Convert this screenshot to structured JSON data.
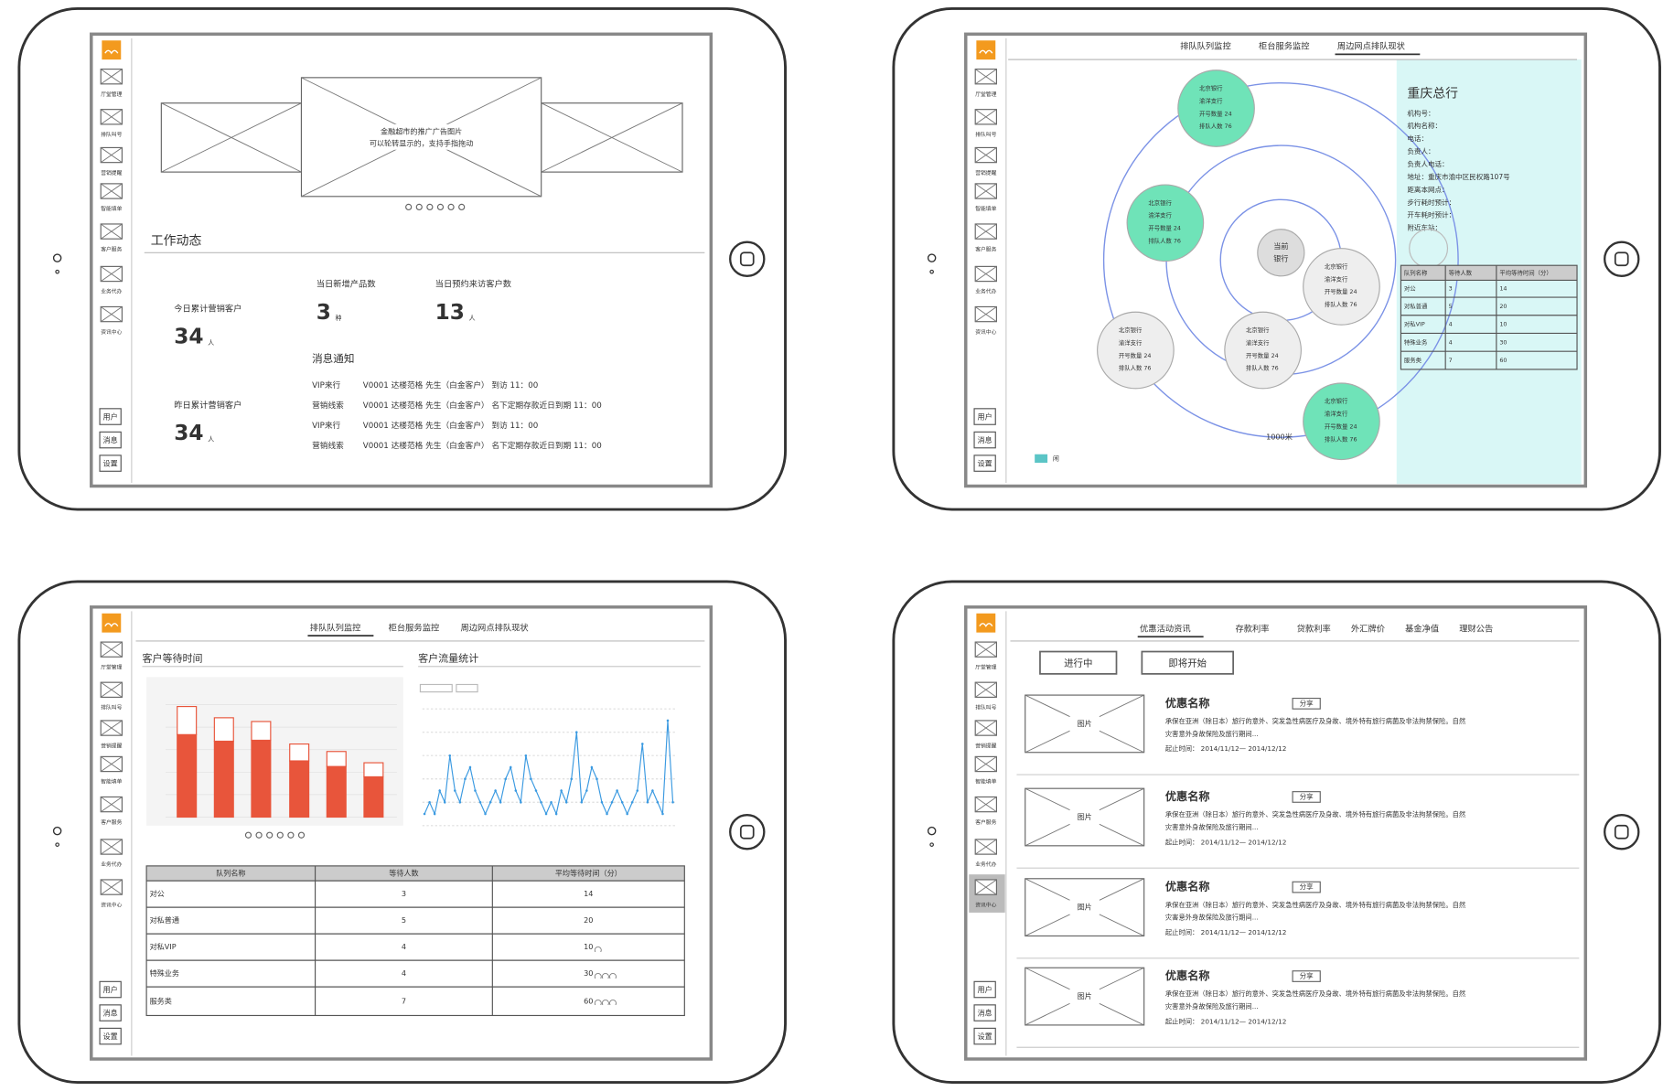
{
  "sidebar": {
    "menu": [
      "厅堂管理",
      "排队叫号",
      "营销提醒",
      "智能填单",
      "客户服务",
      "业务代办",
      "资讯中心"
    ],
    "bottom": [
      "用户",
      "消息",
      "设置"
    ]
  },
  "screen1": {
    "banner": [
      "金融超市的推广广告图片",
      "可以轮转显示的，支持手指拖动"
    ],
    "section": "工作动态",
    "stats": [
      {
        "label": "今日累计营销客户",
        "value": "34",
        "unit": "人"
      },
      {
        "label": "当日新增产品数",
        "value": "3",
        "unit": "种"
      },
      {
        "label": "当日预约来访客户数",
        "value": "13",
        "unit": "人"
      },
      {
        "label": "昨日累计营销客户",
        "value": "34",
        "unit": "人"
      }
    ],
    "notice_title": "消息通知",
    "notices": [
      [
        "VIP来行",
        "V0001 达楼范格 先生（白金客户） 到访 11：00"
      ],
      [
        "营销线索",
        "V0001 达楼范格 先生（白金客户） 名下定期存款近日到期 11：00"
      ],
      [
        "VIP来行",
        "V0001 达楼范格 先生（白金客户） 到访 11：00"
      ],
      [
        "营销线索",
        "V0001 达楼范格 先生（白金客户） 名下定期存款近日到期 11：00"
      ]
    ]
  },
  "screen2": {
    "tabs": [
      "排队队列监控",
      "柜台服务监控",
      "周边网点排队现状"
    ],
    "center": [
      "当前",
      "银行"
    ],
    "bubbles": [
      {
        "color": "#6fe3b8",
        "lines": [
          "北京银行",
          "渝洋支行",
          "开号数量 24",
          "排队人数 76"
        ]
      },
      {
        "color": "#6fe3b8",
        "lines": [
          "北京银行",
          "渝洋支行",
          "开号数量 24",
          "排队人数 76"
        ]
      },
      {
        "color": "#eeeeee",
        "lines": [
          "北京银行",
          "渝洋支行",
          "开号数量 24",
          "排队人数 76"
        ]
      },
      {
        "color": "#eeeeee",
        "lines": [
          "北京银行",
          "渝洋支行",
          "开号数量 24",
          "排队人数 76"
        ]
      },
      {
        "color": "#eeeeee",
        "lines": [
          "北京银行",
          "渝洋支行",
          "开号数量 24",
          "排队人数 76"
        ]
      },
      {
        "color": "#6fe3b8",
        "lines": [
          "北京银行",
          "渝洋支行",
          "开号数量 24",
          "排队人数 76"
        ]
      }
    ],
    "distance": "1000米",
    "legend": "闲",
    "panel_color": "#d9f7f6",
    "panel_title": "重庆总行",
    "fields": [
      "机构号：",
      "机构名称：",
      "电话：",
      "负责人：",
      "负责人电话：",
      "地址：重庆市渝中区民权路107号",
      "距离本网点：",
      "步行耗时预计：",
      "开车耗时预计：",
      "附近车站："
    ],
    "table": {
      "header": [
        "队列名称",
        "等待人数",
        "平均等待时间（分）"
      ],
      "rows": [
        [
          "对公",
          "3",
          "14"
        ],
        [
          "对私普通",
          "5",
          "20"
        ],
        [
          "对私VIP",
          "4",
          "10"
        ],
        [
          "特殊业务",
          "4",
          "30"
        ],
        [
          "服务类",
          "7",
          "60"
        ]
      ]
    }
  },
  "screen3": {
    "tabs": [
      "排队队列监控",
      "柜台服务监控",
      "周边网点排队现状"
    ],
    "panels": [
      "客户等待时间",
      "客户流量统计"
    ],
    "wait_chart": {
      "type": "bar",
      "ylim": [
        0,
        120
      ],
      "series": [
        {
          "color": "#e8553b",
          "values": [
            88,
            81,
            82,
            60,
            54,
            43
          ]
        },
        {
          "color": "#ffffff",
          "values": [
            30,
            25,
            20,
            18,
            16,
            15
          ]
        }
      ]
    },
    "flow_chart": {
      "type": "line",
      "color": "#3b9ae1",
      "ylim": [
        0,
        10
      ],
      "values": [
        1,
        2,
        1,
        3,
        2,
        6,
        3,
        2,
        4,
        5,
        3,
        2,
        1,
        2,
        3,
        2,
        4,
        5,
        3,
        2,
        6,
        4,
        3,
        2,
        1,
        2,
        1,
        3,
        2,
        4,
        8,
        2,
        3,
        5,
        4,
        2,
        1,
        2,
        3,
        2,
        1,
        2,
        3,
        7,
        2,
        3,
        2,
        1,
        9,
        2
      ]
    },
    "table": {
      "header": [
        "队列名称",
        "等待人数",
        "平均等待时间（分）"
      ],
      "rows": [
        [
          "对公",
          "3",
          "14"
        ],
        [
          "对私普通",
          "5",
          "20"
        ],
        [
          "对私VIP",
          "4",
          "10"
        ],
        [
          "特殊业务",
          "4",
          "30"
        ],
        [
          "服务类",
          "7",
          "60"
        ]
      ]
    }
  },
  "screen4": {
    "tabs": [
      "优惠活动资讯",
      "存款利率",
      "贷款利率",
      "外汇牌价",
      "基金净值",
      "理财公告"
    ],
    "buttons": [
      "进行中",
      "即将开始"
    ],
    "items": [
      {
        "image": "图片",
        "title": "优惠名称",
        "share": "分享",
        "desc": [
          "承保在亚洲（除日本）旅行的意外、突发急性病医疗及身故、境外特有旅行病菌及非法拘禁保险。自然",
          "灾害意外身故保险及旅行期间..."
        ],
        "period": "起止时间： 2014/11/12— 2014/12/12"
      },
      {
        "image": "图片",
        "title": "优惠名称",
        "share": "分享",
        "desc": [
          "承保在亚洲（除日本）旅行的意外、突发急性病医疗及身故、境外特有旅行病菌及非法拘禁保险。自然",
          "灾害意外身故保险及旅行期间..."
        ],
        "period": "起止时间： 2014/11/12— 2014/12/12"
      },
      {
        "image": "图片",
        "title": "优惠名称",
        "share": "分享",
        "desc": [
          "承保在亚洲（除日本）旅行的意外、突发急性病医疗及身故、境外特有旅行病菌及非法拘禁保险。自然",
          "灾害意外身故保险及旅行期间..."
        ],
        "period": "起止时间： 2014/11/12— 2014/12/12"
      },
      {
        "image": "图片",
        "title": "优惠名称",
        "share": "分享",
        "desc": [
          "承保在亚洲（除日本）旅行的意外、突发急性病医疗及身故、境外特有旅行病菌及非法拘禁保险。自然",
          "灾害意外身故保险及旅行期间..."
        ],
        "period": "起止时间： 2014/11/12— 2014/12/12"
      }
    ]
  }
}
